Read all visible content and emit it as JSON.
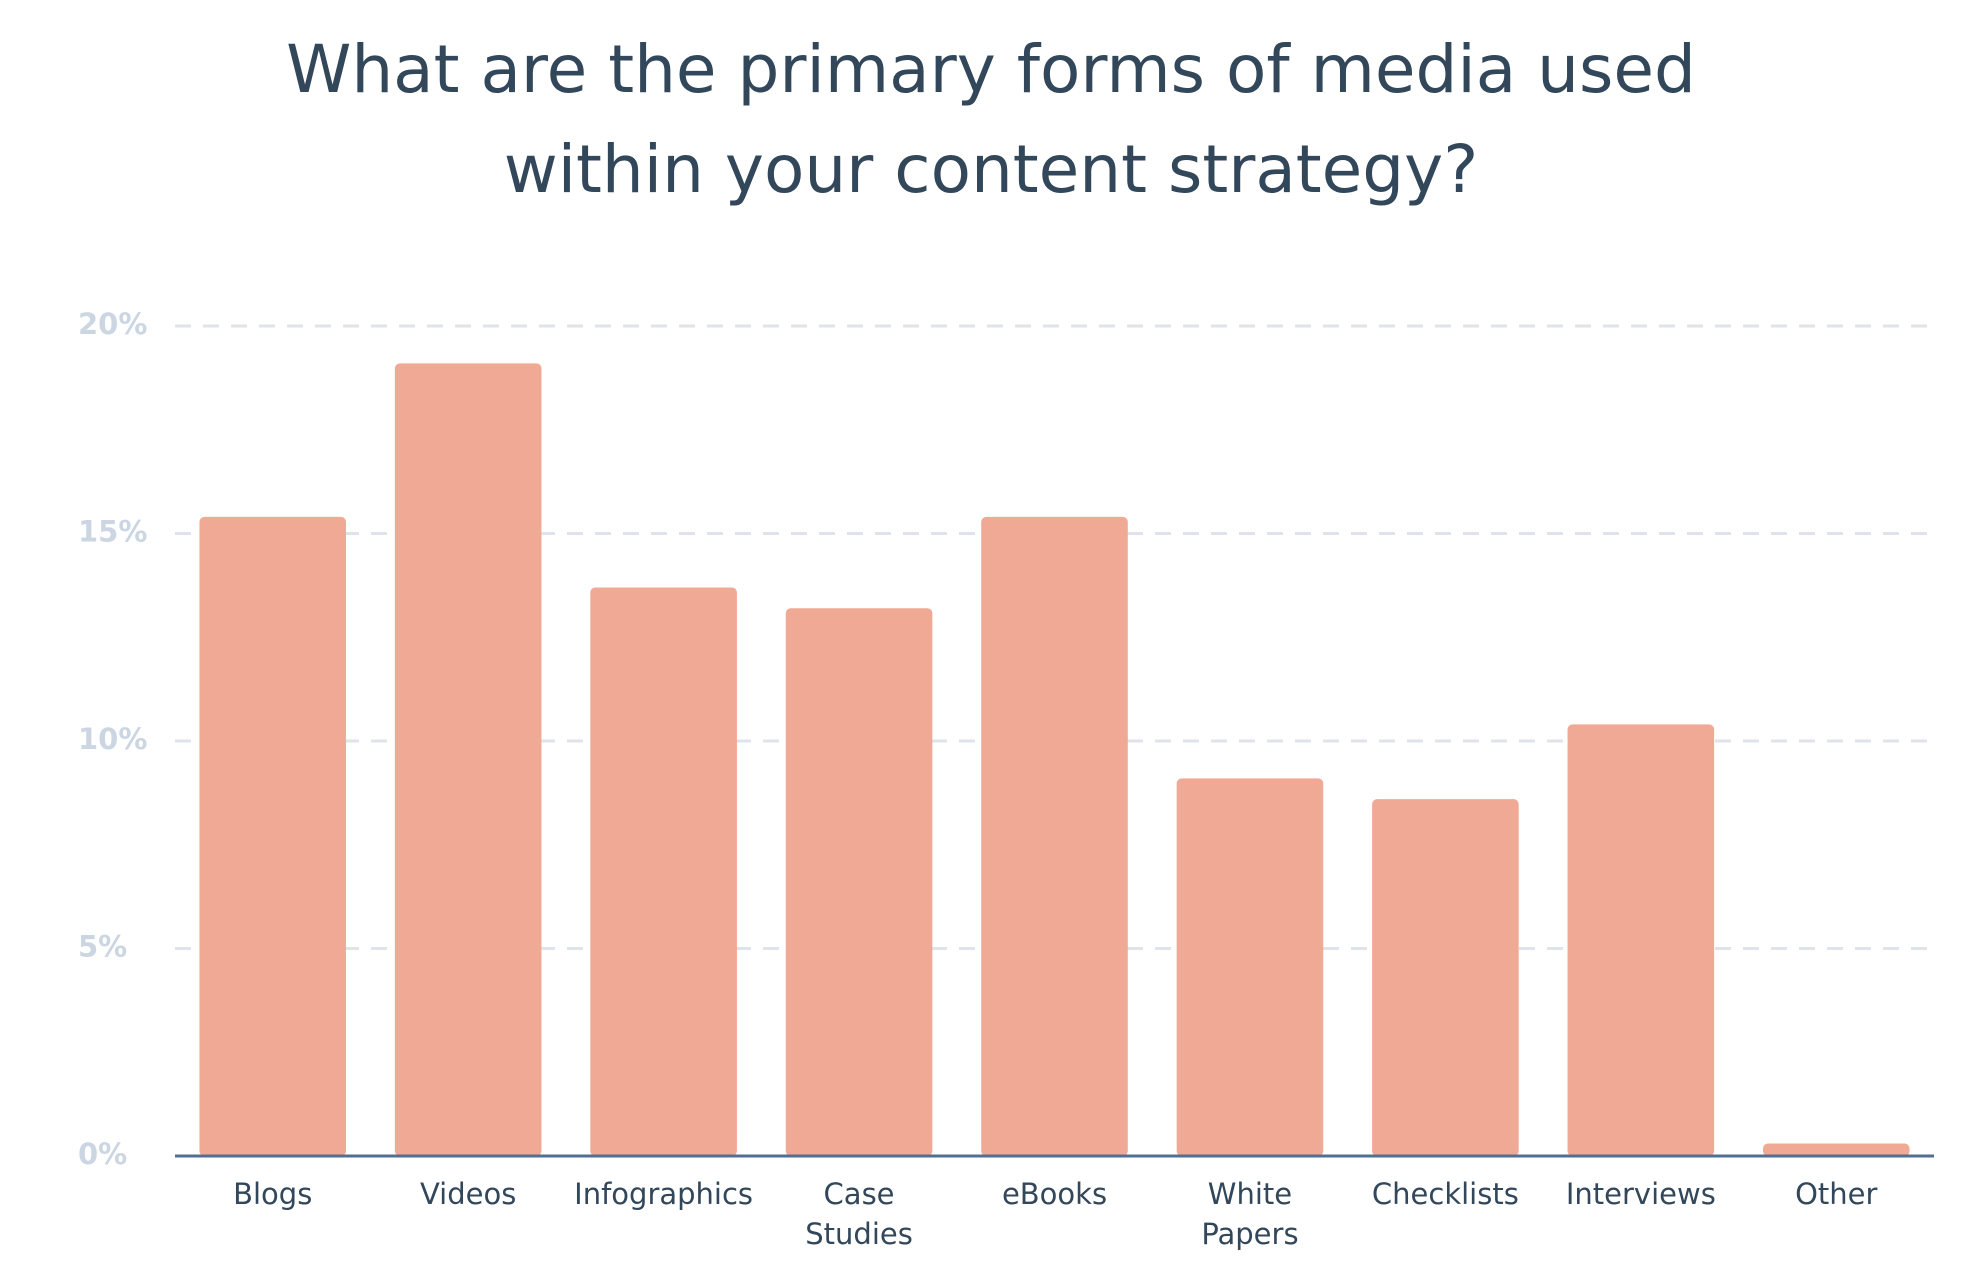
{
  "chart_data": {
    "type": "bar",
    "title": "What are the primary forms of media used within your content strategy?",
    "categories": [
      "Blogs",
      "Videos",
      "Infographics",
      "Case\nStudies",
      "eBooks",
      "White\nPapers",
      "Checklists",
      "Interviews",
      "Other"
    ],
    "values": [
      15.4,
      19.1,
      13.7,
      13.2,
      15.4,
      9.1,
      8.6,
      10.4,
      0.3
    ],
    "color": "#f0a994",
    "ylim": [
      0,
      20
    ],
    "yticks": [
      {
        "value": 0,
        "label": "0%"
      },
      {
        "value": 5,
        "label": "5%"
      },
      {
        "value": 10,
        "label": "10%"
      },
      {
        "value": 15,
        "label": "15%"
      },
      {
        "value": 20,
        "label": "20%"
      }
    ],
    "grid": true
  }
}
